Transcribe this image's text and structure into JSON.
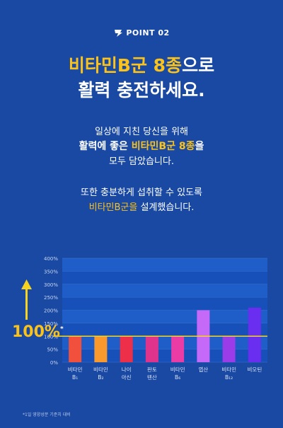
{
  "header": {
    "point_label": "POINT 02"
  },
  "headline": {
    "line1_highlight": "비타민B군 8종",
    "line1_rest": "으로",
    "line2": "활력 충전하세요."
  },
  "description": {
    "line1": "일상에 지친 당신을 위해",
    "line2_pre": "활력에 좋은 ",
    "line2_highlight": "비타민B군 8종",
    "line2_post": "을",
    "line3": "모두 담았습니다.",
    "line4": "또한 충분하게 섭취할 수 있도록",
    "line5_highlight": "비타민B군을",
    "line5_rest": " 설계했습니다."
  },
  "chart_data": {
    "type": "bar",
    "categories": [
      [
        "비타민",
        "B₁"
      ],
      [
        "비타민",
        "B₂"
      ],
      [
        "나이",
        "아신"
      ],
      [
        "판토",
        "텐산"
      ],
      [
        "비타민",
        "B₆"
      ],
      [
        "엽산"
      ],
      [
        "비타민",
        "B₁₂"
      ],
      [
        "비오틴"
      ]
    ],
    "values": [
      100,
      100,
      100,
      100,
      100,
      200,
      100,
      210
    ],
    "colors": [
      "#f0503c",
      "#fa9a2e",
      "#ee2f4a",
      "#e0338c",
      "#eb3ca6",
      "#c56af8",
      "#9a3de9",
      "#6a2ef0"
    ],
    "yticks": [
      "0%",
      "50%",
      "100%",
      "150%",
      "200%",
      "250%",
      "300%",
      "350%",
      "400%"
    ],
    "ylim": [
      0,
      400
    ],
    "reference_line": 100,
    "reference_color": "#f7d51e"
  },
  "reference_label": {
    "value": "100%",
    "mark": "*"
  },
  "footnote": "*1일 영양성분 기준치 대비"
}
